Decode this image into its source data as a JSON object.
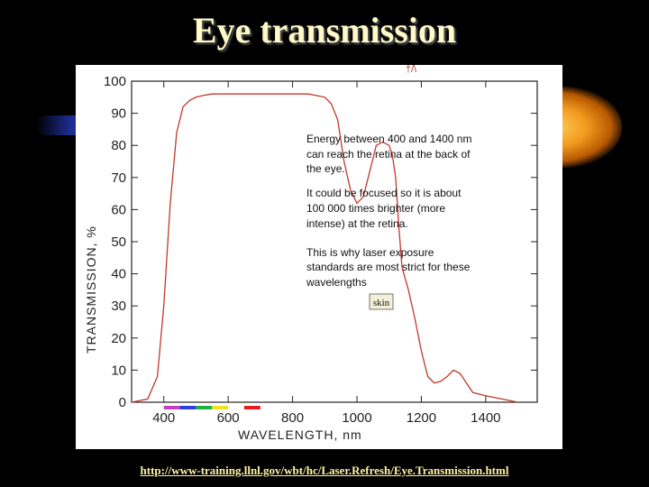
{
  "title": "Eye transmission",
  "source_url": "http://www-training.llnl.gov/wbt/hc/Laser.Refresh/Eye.Transmission.html",
  "colors": {
    "curve": "#c0392b",
    "title": "#fff8c8",
    "link": "#fff3a0",
    "background": "#000000"
  },
  "chart_data": {
    "type": "line",
    "xlabel": "WAVELENGTH, nm",
    "ylabel": "TRANSMISSION, %",
    "xlim": [
      300,
      1560
    ],
    "ylim": [
      0,
      100
    ],
    "xticks": [
      400,
      600,
      800,
      1000,
      1200,
      1400
    ],
    "yticks": [
      0,
      10,
      20,
      30,
      40,
      50,
      60,
      70,
      80,
      90,
      100
    ],
    "grid": false,
    "series": [
      {
        "x": [
          300,
          350,
          380,
          400,
          420,
          440,
          460,
          480,
          500,
          520,
          550,
          600,
          650,
          700,
          750,
          800,
          850,
          900,
          920,
          940,
          960,
          980,
          1000,
          1020,
          1040,
          1060,
          1080,
          1100,
          1110,
          1120,
          1130,
          1140,
          1160,
          1180,
          1200,
          1220,
          1240,
          1260,
          1280,
          1300,
          1320,
          1340,
          1360,
          1400,
          1450,
          1500
        ],
        "y": [
          0,
          1,
          8,
          30,
          62,
          84,
          92,
          94,
          95,
          95.5,
          96,
          96,
          96,
          96,
          96,
          96,
          96,
          95,
          93,
          88,
          75,
          66,
          62,
          64,
          72,
          80,
          81,
          80,
          77,
          70,
          55,
          42,
          35,
          26,
          16,
          8,
          6,
          6.5,
          8,
          10,
          9,
          6,
          3,
          2,
          1,
          0
        ]
      }
    ],
    "spectrum_bar": [
      {
        "color": "#c040c0",
        "x": [
          400,
          450
        ]
      },
      {
        "color": "#3040e0",
        "x": [
          450,
          500
        ]
      },
      {
        "color": "#20b040",
        "x": [
          500,
          550
        ]
      },
      {
        "color": "#f0e020",
        "x": [
          550,
          600
        ]
      },
      {
        "color": "#e02020",
        "x": [
          650,
          700
        ]
      }
    ],
    "annotations": [
      "Energy between 400 and 1400 nm",
      "can reach the retina at the back of",
      "the eye.",
      "It could be focused so it is about",
      "100 000 times brighter (more",
      "intense) at the retina.",
      "This is why laser exposure",
      "standards are most strict for these",
      "wavelengths"
    ],
    "skin_label": "skin",
    "top_mark": "†/\\"
  }
}
